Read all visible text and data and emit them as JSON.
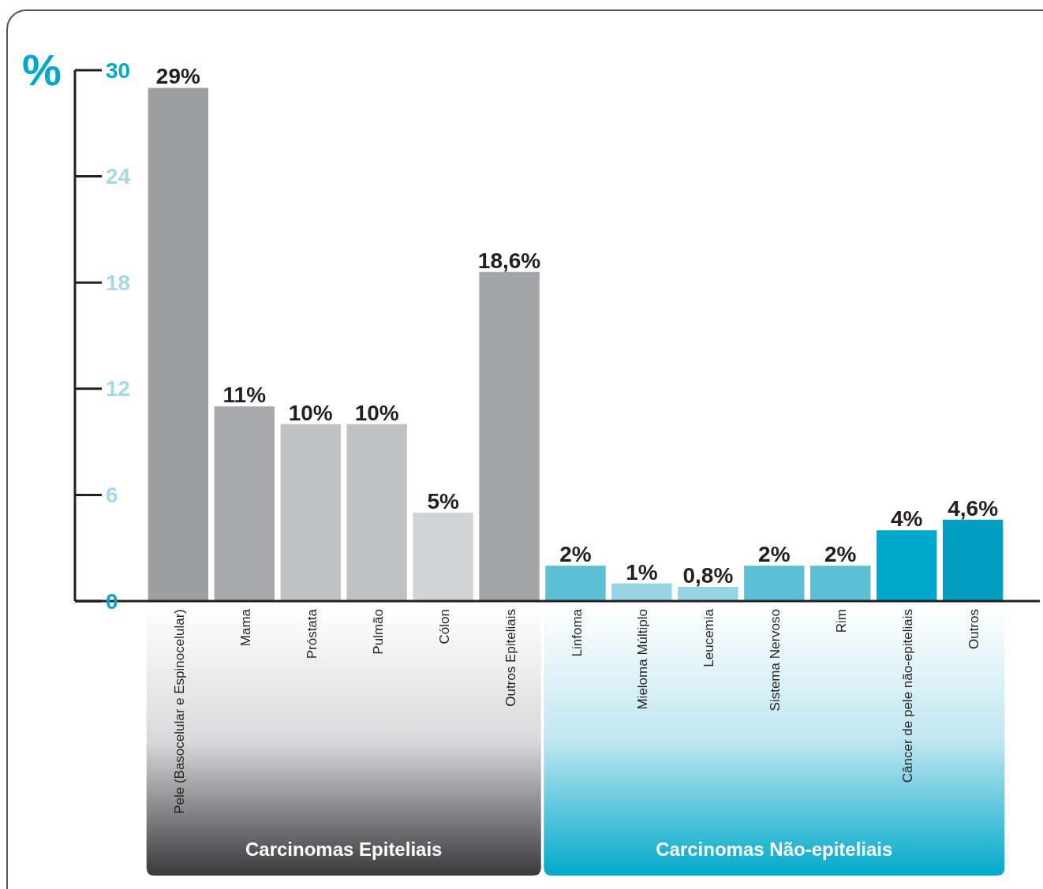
{
  "chart_data": {
    "type": "bar",
    "ylabel": "%",
    "categories": [
      "Pele (Basocelular e Espinocelular)",
      "Mama",
      "Próstata",
      "Pulmão",
      "Cólon",
      "Outros Epiteliais",
      "Linfoma",
      "Mieloma Múltiplo",
      "Leucemia",
      "Sistema Nervoso",
      "Rim",
      "Câncer de pele não-epiteliais",
      "Outros"
    ],
    "values": [
      29,
      11,
      10,
      10,
      5,
      18.6,
      2,
      1,
      0.8,
      2,
      2,
      4,
      4.6
    ],
    "colors": [
      "#9d9ea0",
      "#a7a9ac",
      "#c0c1c3",
      "#c0c1c3",
      "#d2d3d5",
      "#a2a4a7",
      "#5bbfd6",
      "#96d3e3",
      "#96d3e3",
      "#5bbfd6",
      "#5bbfd6",
      "#00a9cc",
      "#009fc2"
    ],
    "value_labels": [
      "29%",
      "11%",
      "10%",
      "10%",
      "5%",
      "18,6%",
      "2%",
      "1%",
      "0,8%",
      "2%",
      "2%",
      "4%",
      "4,6%"
    ],
    "ylim": [
      0,
      30
    ],
    "yticks": [
      0,
      6,
      12,
      18,
      24,
      30
    ],
    "annotations": [
      "Carcinomas Epiteliais",
      "Carcinomas Não-epiteliais"
    ]
  }
}
